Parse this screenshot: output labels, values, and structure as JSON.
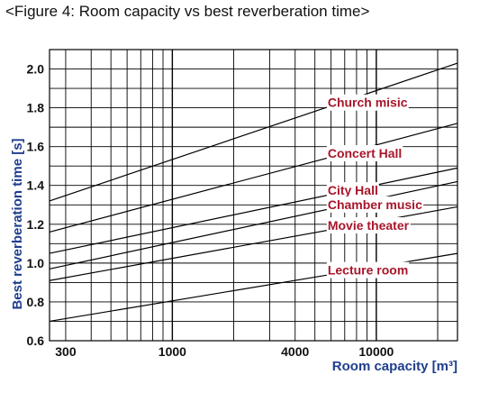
{
  "figure_title": "<Figure 4: Room capacity vs best reverberation time>",
  "chart_data": {
    "type": "line",
    "title": "<Figure 4: Room capacity vs best reverberation time>",
    "xlabel": "Room capacity",
    "xunit": "[m³]",
    "ylabel": "Best  reverberation  time",
    "yunit": "[s]",
    "x_scale": "log",
    "xlim": [
      250,
      25000
    ],
    "ylim": [
      0.6,
      2.1
    ],
    "x_ticks": [
      300,
      1000,
      4000,
      10000
    ],
    "x_tick_labels": [
      "300",
      "1000",
      "4000",
      "10000"
    ],
    "y_ticks": [
      0.6,
      0.8,
      1.0,
      1.2,
      1.4,
      1.6,
      1.8,
      2.0
    ],
    "y_tick_labels": [
      "0.6",
      "0.8",
      "1.0",
      "1.2",
      "1.4",
      "1.6",
      "1.8",
      "2.0"
    ],
    "grid": true,
    "series": [
      {
        "name": "Church misic",
        "x": [
          250,
          25000
        ],
        "y": [
          1.32,
          2.03
        ]
      },
      {
        "name": "Concert Hall",
        "x": [
          250,
          25000
        ],
        "y": [
          1.16,
          1.72
        ]
      },
      {
        "name": "City Hall",
        "x": [
          250,
          25000
        ],
        "y": [
          1.05,
          1.49
        ]
      },
      {
        "name": "Chamber music",
        "x": [
          250,
          25000
        ],
        "y": [
          0.97,
          1.42
        ]
      },
      {
        "name": "Movie theater",
        "x": [
          250,
          25000
        ],
        "y": [
          0.91,
          1.29
        ]
      },
      {
        "name": "Lecture room",
        "x": [
          250,
          25000
        ],
        "y": [
          0.7,
          1.05
        ]
      }
    ]
  },
  "colors": {
    "label": "#a8162a",
    "axis_title": "#1f3e8c",
    "grid": "#000000"
  }
}
